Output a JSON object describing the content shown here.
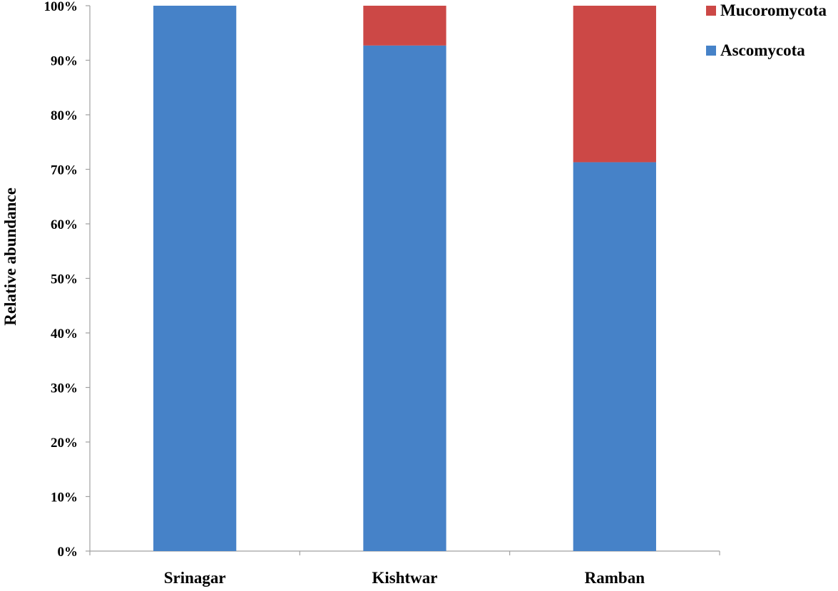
{
  "chart_data": {
    "type": "bar",
    "stacked": true,
    "percent": true,
    "title": "",
    "xlabel": "",
    "ylabel": "Relative abundance",
    "categories": [
      "Srinagar",
      "Kishtwar",
      "Ramban"
    ],
    "series": [
      {
        "name": "Ascomycota",
        "values": [
          100,
          92.7,
          71.3
        ],
        "color": "#4682C8"
      },
      {
        "name": "Mucoromycota",
        "values": [
          0,
          7.3,
          28.7
        ],
        "color": "#CC4846"
      }
    ],
    "ylim": [
      0,
      100
    ],
    "yticks": [
      "0%",
      "10%",
      "20%",
      "30%",
      "40%",
      "50%",
      "60%",
      "70%",
      "80%",
      "90%",
      "100%"
    ],
    "grid": false,
    "legend": {
      "position": "top-right",
      "entries": [
        "Mucoromycota",
        "Ascomycota"
      ]
    },
    "axis_color": "#A0A0A0"
  }
}
